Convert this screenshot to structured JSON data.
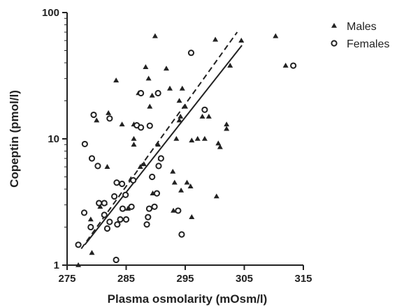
{
  "chart_data": {
    "type": "scatter",
    "title": "",
    "xlabel": "Plasma osmolarity (mOsm/l)",
    "ylabel": "Copeptin (pmol/l)",
    "xlim": [
      275,
      315
    ],
    "ylim": [
      1,
      100
    ],
    "yscale": "log",
    "x_ticks": [
      275,
      285,
      295,
      305,
      315
    ],
    "x_tick_labels": [
      "275",
      "285",
      "295",
      "305",
      "315"
    ],
    "y_ticks": [
      1,
      10,
      100
    ],
    "y_tick_labels": [
      "1",
      "10",
      "100"
    ],
    "grid": false,
    "legend_position": "top-right",
    "series": [
      {
        "name": "Males",
        "marker": "triangle",
        "color": "#222222",
        "points": [
          [
            276.9,
            1.0
          ],
          [
            279.2,
            1.25
          ],
          [
            279.0,
            2.3
          ],
          [
            280.6,
            2.9
          ],
          [
            281.4,
            3.1
          ],
          [
            281.8,
            6.0
          ],
          [
            280.0,
            14.0
          ],
          [
            282.0,
            16.0
          ],
          [
            283.3,
            29.0
          ],
          [
            284.3,
            13.0
          ],
          [
            284.8,
            3.6
          ],
          [
            285.3,
            2.8
          ],
          [
            285.8,
            4.8
          ],
          [
            286.3,
            10.0
          ],
          [
            286.3,
            9.0
          ],
          [
            286.3,
            13.0
          ],
          [
            287.1,
            23.0
          ],
          [
            287.4,
            6.0
          ],
          [
            288.0,
            6.3
          ],
          [
            288.3,
            37.0
          ],
          [
            288.8,
            30.0
          ],
          [
            289.0,
            18.0
          ],
          [
            289.4,
            22.0
          ],
          [
            289.5,
            3.7
          ],
          [
            289.9,
            65.0
          ],
          [
            290.4,
            9.0
          ],
          [
            290.8,
            7.0
          ],
          [
            291.8,
            36.0
          ],
          [
            292.4,
            25.0
          ],
          [
            292.9,
            5.5
          ],
          [
            293.0,
            2.7
          ],
          [
            293.2,
            4.5
          ],
          [
            293.5,
            10.0
          ],
          [
            294.0,
            14.0
          ],
          [
            294.0,
            20.0
          ],
          [
            294.2,
            15.0
          ],
          [
            294.3,
            3.9
          ],
          [
            294.5,
            25.0
          ],
          [
            295.0,
            18.0
          ],
          [
            295.3,
            4.5
          ],
          [
            295.9,
            4.2
          ],
          [
            296.1,
            9.7
          ],
          [
            296.1,
            2.4
          ],
          [
            297.1,
            10.0
          ],
          [
            297.9,
            15.0
          ],
          [
            298.3,
            10.0
          ],
          [
            299.0,
            15.0
          ],
          [
            300.1,
            61.0
          ],
          [
            300.3,
            3.5
          ],
          [
            300.6,
            9.2
          ],
          [
            300.9,
            8.6
          ],
          [
            302.0,
            12.0
          ],
          [
            302.0,
            13.0
          ],
          [
            302.6,
            38.0
          ],
          [
            304.5,
            60.0
          ],
          [
            310.3,
            65.0
          ],
          [
            312.0,
            38.0
          ]
        ]
      },
      {
        "name": "Females",
        "marker": "circle",
        "color": "#222222",
        "points": [
          [
            276.9,
            1.45
          ],
          [
            277.9,
            2.6
          ],
          [
            278.0,
            9.1
          ],
          [
            279.0,
            2.0
          ],
          [
            279.2,
            7.0
          ],
          [
            279.5,
            15.5
          ],
          [
            280.2,
            6.1
          ],
          [
            280.4,
            3.1
          ],
          [
            281.3,
            3.1
          ],
          [
            281.3,
            2.5
          ],
          [
            281.8,
            1.95
          ],
          [
            282.2,
            14.5
          ],
          [
            282.2,
            2.2
          ],
          [
            283.0,
            3.5
          ],
          [
            283.3,
            1.1
          ],
          [
            283.4,
            4.5
          ],
          [
            283.5,
            2.1
          ],
          [
            284.0,
            2.3
          ],
          [
            284.3,
            4.4
          ],
          [
            284.4,
            2.8
          ],
          [
            284.9,
            3.6
          ],
          [
            285.0,
            2.3
          ],
          [
            285.9,
            2.9
          ],
          [
            286.2,
            4.7
          ],
          [
            286.8,
            12.8
          ],
          [
            287.5,
            12.3
          ],
          [
            287.5,
            23.0
          ],
          [
            288.5,
            2.1
          ],
          [
            288.7,
            2.4
          ],
          [
            288.9,
            2.8
          ],
          [
            289.0,
            12.7
          ],
          [
            289.4,
            5.0
          ],
          [
            289.8,
            2.9
          ],
          [
            290.2,
            3.7
          ],
          [
            290.4,
            23.0
          ],
          [
            290.5,
            6.1
          ],
          [
            290.9,
            7.0
          ],
          [
            293.8,
            2.7
          ],
          [
            294.4,
            1.75
          ],
          [
            296.0,
            48.0
          ],
          [
            298.3,
            17.0
          ],
          [
            313.3,
            38.0
          ]
        ]
      }
    ],
    "fit_lines": [
      {
        "series": "Males",
        "style": "solid",
        "x": [
          278.0,
          304.6
        ],
        "y": [
          1.45,
          55.0
        ]
      },
      {
        "series": "Females",
        "style": "dashed",
        "x": [
          277.4,
          303.8
        ],
        "y": [
          1.35,
          70.0
        ]
      }
    ]
  }
}
